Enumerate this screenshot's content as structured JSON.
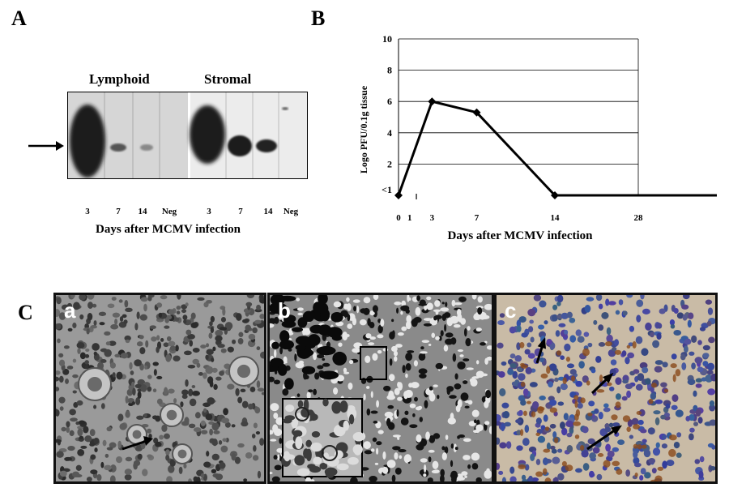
{
  "panels": {
    "a_label": "A",
    "b_label": "B",
    "c_label": "C"
  },
  "blot": {
    "group_labels": [
      "Lymphoid",
      "Stromal"
    ],
    "lane_labels": [
      "3",
      "7",
      "14",
      "Neg",
      "3",
      "7",
      "14",
      "Neg"
    ],
    "xlabel": "Days after MCMV infection"
  },
  "chart_data": {
    "type": "line",
    "title": "",
    "xlabel": "Days after MCMV infection",
    "ylabel": "Logo PFU/0.1g tissue",
    "x_ticks": [
      "0",
      "1",
      "3",
      "7",
      "14",
      "28"
    ],
    "y_ticks": [
      "<1",
      "2",
      "4",
      "6",
      "8",
      "10"
    ],
    "ylim": [
      0,
      10
    ],
    "grid": true,
    "series": [
      {
        "points": [
          [
            0,
            0
          ],
          [
            3,
            6
          ],
          [
            7,
            5.3
          ],
          [
            14,
            0
          ],
          [
            35,
            0
          ]
        ]
      }
    ]
  },
  "micrographs": {
    "labels": [
      "a",
      "b",
      "c"
    ]
  }
}
